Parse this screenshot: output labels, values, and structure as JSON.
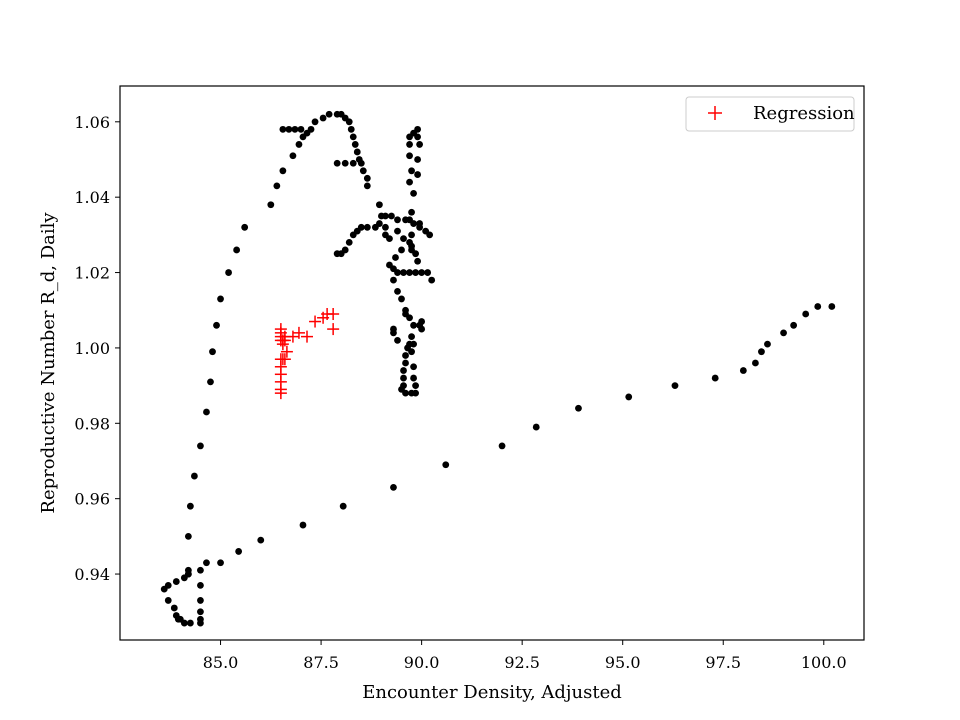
{
  "chart_data": {
    "type": "scatter",
    "title": "",
    "xlabel": "Encounter Density, Adjusted",
    "ylabel": "Reproductive Number R_d, Daily",
    "xlim": [
      82.5,
      101.0
    ],
    "ylim": [
      0.9225,
      1.0695
    ],
    "xticks": [
      85.0,
      87.5,
      90.0,
      92.5,
      95.0,
      97.5,
      100.0
    ],
    "xtick_labels": [
      "85.0",
      "87.5",
      "90.0",
      "92.5",
      "95.0",
      "97.5",
      "100.0"
    ],
    "yticks": [
      0.94,
      0.96,
      0.98,
      1.0,
      1.02,
      1.04,
      1.06
    ],
    "ytick_labels": [
      "0.94",
      "0.96",
      "0.98",
      "1.00",
      "1.02",
      "1.04",
      "1.06"
    ],
    "grid": false,
    "legend": {
      "position": "top-right",
      "entries": [
        "Regression"
      ]
    },
    "series": [
      {
        "marker": "dot",
        "color": "#000000",
        "points": [
          [
            100.2,
            1.011
          ],
          [
            99.85,
            1.011
          ],
          [
            99.55,
            1.009
          ],
          [
            99.25,
            1.006
          ],
          [
            99.0,
            1.004
          ],
          [
            98.6,
            1.001
          ],
          [
            98.45,
            0.999
          ],
          [
            98.3,
            0.996
          ],
          [
            98.0,
            0.994
          ],
          [
            97.3,
            0.992
          ],
          [
            96.3,
            0.99
          ],
          [
            95.15,
            0.987
          ],
          [
            93.9,
            0.984
          ],
          [
            92.85,
            0.979
          ],
          [
            92.0,
            0.974
          ],
          [
            90.6,
            0.969
          ],
          [
            89.3,
            0.963
          ],
          [
            88.05,
            0.958
          ],
          [
            87.05,
            0.953
          ],
          [
            86.0,
            0.949
          ],
          [
            85.45,
            0.946
          ],
          [
            85.0,
            0.943
          ],
          [
            84.65,
            0.943
          ],
          [
            84.5,
            0.941
          ],
          [
            84.2,
            0.94
          ],
          [
            84.1,
            0.939
          ],
          [
            83.9,
            0.938
          ],
          [
            83.7,
            0.937
          ],
          [
            83.6,
            0.936
          ],
          [
            83.7,
            0.933
          ],
          [
            83.85,
            0.931
          ],
          [
            83.9,
            0.929
          ],
          [
            83.95,
            0.928
          ],
          [
            84.0,
            0.928
          ],
          [
            84.1,
            0.927
          ],
          [
            84.25,
            0.927
          ],
          [
            84.5,
            0.927
          ],
          [
            84.5,
            0.928
          ],
          [
            84.5,
            0.93
          ],
          [
            84.5,
            0.933
          ],
          [
            84.5,
            0.937
          ],
          [
            84.2,
            0.94
          ],
          [
            84.2,
            0.941
          ],
          [
            84.2,
            0.95
          ],
          [
            84.25,
            0.958
          ],
          [
            84.35,
            0.966
          ],
          [
            84.5,
            0.974
          ],
          [
            84.65,
            0.983
          ],
          [
            84.75,
            0.991
          ],
          [
            84.8,
            0.999
          ],
          [
            84.9,
            1.006
          ],
          [
            85.0,
            1.013
          ],
          [
            85.2,
            1.02
          ],
          [
            85.4,
            1.026
          ],
          [
            85.6,
            1.032
          ],
          [
            86.25,
            1.038
          ],
          [
            86.4,
            1.043
          ],
          [
            86.55,
            1.047
          ],
          [
            86.8,
            1.051
          ],
          [
            86.95,
            1.054
          ],
          [
            87.05,
            1.056
          ],
          [
            87.15,
            1.057
          ],
          [
            87.25,
            1.058
          ],
          [
            87.0,
            1.058
          ],
          [
            86.85,
            1.058
          ],
          [
            86.7,
            1.058
          ],
          [
            86.55,
            1.058
          ],
          [
            87.35,
            1.06
          ],
          [
            87.55,
            1.061
          ],
          [
            87.7,
            1.062
          ],
          [
            87.9,
            1.062
          ],
          [
            88.0,
            1.062
          ],
          [
            88.1,
            1.061
          ],
          [
            88.2,
            1.06
          ],
          [
            88.25,
            1.058
          ],
          [
            88.3,
            1.056
          ],
          [
            88.35,
            1.054
          ],
          [
            88.4,
            1.052
          ],
          [
            88.45,
            1.05
          ],
          [
            88.5,
            1.049
          ],
          [
            88.55,
            1.047
          ],
          [
            88.65,
            1.045
          ],
          [
            88.65,
            1.043
          ],
          [
            88.3,
            1.049
          ],
          [
            88.1,
            1.049
          ],
          [
            87.9,
            1.049
          ],
          [
            87.9,
            1.025
          ],
          [
            88.0,
            1.025
          ],
          [
            88.1,
            1.026
          ],
          [
            88.2,
            1.028
          ],
          [
            88.3,
            1.03
          ],
          [
            88.4,
            1.031
          ],
          [
            88.5,
            1.032
          ],
          [
            88.65,
            1.032
          ],
          [
            88.85,
            1.032
          ],
          [
            88.95,
            1.033
          ],
          [
            89.0,
            1.035
          ],
          [
            89.1,
            1.035
          ],
          [
            89.25,
            1.035
          ],
          [
            89.4,
            1.034
          ],
          [
            89.6,
            1.034
          ],
          [
            89.8,
            1.033
          ],
          [
            89.95,
            1.033
          ],
          [
            89.1,
            1.032
          ],
          [
            88.95,
            1.038
          ],
          [
            89.1,
            1.03
          ],
          [
            89.2,
            1.029
          ],
          [
            89.2,
            1.022
          ],
          [
            89.3,
            1.021
          ],
          [
            89.4,
            1.02
          ],
          [
            89.55,
            1.02
          ],
          [
            89.7,
            1.02
          ],
          [
            89.85,
            1.02
          ],
          [
            90.0,
            1.02
          ],
          [
            90.15,
            1.02
          ],
          [
            90.25,
            1.018
          ],
          [
            90.2,
            1.03
          ],
          [
            90.1,
            1.031
          ],
          [
            89.95,
            1.032
          ],
          [
            89.75,
            1.03
          ],
          [
            89.55,
            1.029
          ],
          [
            89.7,
            1.028
          ],
          [
            89.75,
            1.026
          ],
          [
            89.85,
            1.025
          ],
          [
            89.9,
            1.023
          ],
          [
            89.75,
            1.027
          ],
          [
            89.5,
            1.026
          ],
          [
            89.35,
            1.024
          ],
          [
            89.3,
            1.018
          ],
          [
            89.4,
            1.015
          ],
          [
            89.5,
            1.013
          ],
          [
            89.6,
            1.01
          ],
          [
            89.7,
            1.008
          ],
          [
            89.8,
            1.006
          ],
          [
            89.95,
            1.006
          ],
          [
            90.0,
            1.007
          ],
          [
            90.0,
            1.005
          ],
          [
            89.75,
            1.003
          ],
          [
            89.7,
            1.001
          ],
          [
            89.65,
            1.0
          ],
          [
            89.6,
            0.998
          ],
          [
            89.6,
            0.996
          ],
          [
            89.55,
            0.994
          ],
          [
            89.55,
            0.992
          ],
          [
            89.55,
            0.99
          ],
          [
            89.5,
            0.989
          ],
          [
            89.6,
            0.988
          ],
          [
            89.75,
            0.988
          ],
          [
            89.85,
            0.988
          ],
          [
            89.85,
            0.99
          ],
          [
            89.8,
            0.992
          ],
          [
            89.8,
            0.995
          ],
          [
            89.75,
            0.999
          ],
          [
            89.8,
            1.001
          ],
          [
            89.3,
            1.005
          ],
          [
            89.3,
            1.004
          ],
          [
            89.4,
            1.002
          ],
          [
            89.6,
            1.009
          ],
          [
            89.7,
            1.044
          ],
          [
            89.75,
            1.047
          ],
          [
            89.7,
            1.051
          ],
          [
            89.7,
            1.054
          ],
          [
            89.7,
            1.056
          ],
          [
            89.8,
            1.057
          ],
          [
            89.9,
            1.058
          ],
          [
            89.9,
            1.056
          ],
          [
            89.95,
            1.054
          ],
          [
            89.9,
            1.05
          ],
          [
            89.9,
            1.046
          ],
          [
            89.8,
            1.041
          ],
          [
            89.75,
            1.036
          ],
          [
            89.7,
            1.034
          ],
          [
            89.4,
            1.031
          ]
        ]
      },
      {
        "name": "Regression",
        "marker": "plus",
        "color": "#ff0000",
        "points": [
          [
            86.5,
            0.988
          ],
          [
            86.5,
            0.989
          ],
          [
            86.5,
            0.991
          ],
          [
            86.5,
            0.993
          ],
          [
            86.5,
            0.995
          ],
          [
            86.5,
            0.997
          ],
          [
            86.55,
            0.997
          ],
          [
            86.6,
            0.997
          ],
          [
            86.5,
            1.002
          ],
          [
            86.55,
            1.002
          ],
          [
            86.6,
            1.002
          ],
          [
            86.5,
            1.003
          ],
          [
            86.5,
            1.004
          ],
          [
            86.5,
            1.005
          ],
          [
            86.65,
            0.999
          ],
          [
            86.6,
            1.003
          ],
          [
            86.8,
            1.003
          ],
          [
            86.95,
            1.004
          ],
          [
            87.15,
            1.003
          ],
          [
            87.35,
            1.007
          ],
          [
            87.55,
            1.008
          ],
          [
            87.65,
            1.009
          ],
          [
            87.8,
            1.009
          ],
          [
            87.8,
            1.005
          ],
          [
            86.55,
            1.001
          ]
        ]
      }
    ]
  }
}
